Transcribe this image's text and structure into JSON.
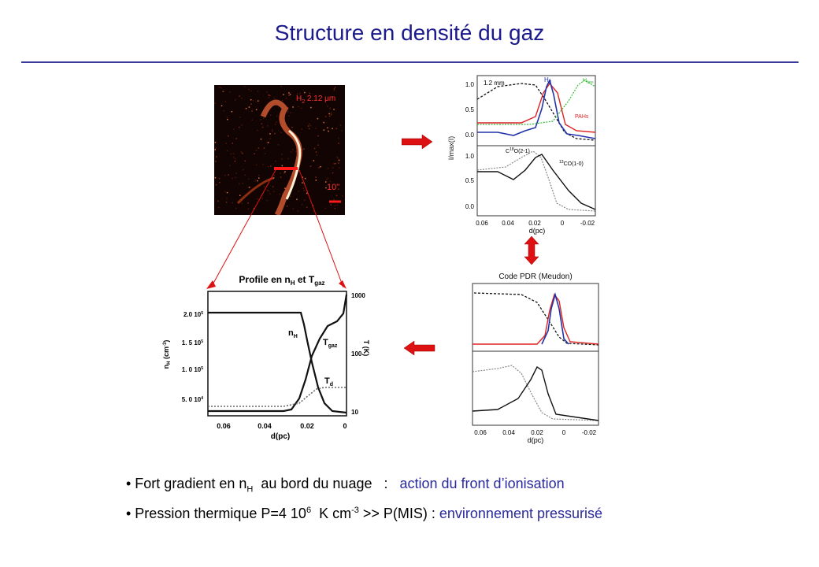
{
  "title": "Structure en densité du gaz",
  "image_panel": {
    "label_main": "H",
    "label_sub": "2",
    "label_rest": " 2.12 μm",
    "scale_label": "10\""
  },
  "top_right_plot": {
    "y_axis_label": "I/max(I)",
    "x_axis_label": "d(pc)",
    "upper_y_ticks": [
      "1.0",
      "0.5",
      "0.0"
    ],
    "lower_y_ticks": [
      "1.0",
      "0.5",
      "0.0"
    ],
    "x_ticks": [
      "0.06",
      "0.04",
      "0.02",
      "0",
      "-0.02"
    ],
    "label_1_2mm": "1.2 mm",
    "label_h2": "H",
    "label_h2_sub": "2",
    "label_hfarm": "H",
    "label_hfarm_sub": "fare",
    "label_pahs": "PAHs",
    "label_c18o": "C",
    "label_c18o_sup": "18",
    "label_c18o_rest": "O(2-1)",
    "label_13co": "",
    "label_13co_sup": "13",
    "label_13co_rest": "CO(1-0)"
  },
  "pdr_plot": {
    "caption": "Code PDR (Meudon)",
    "x_ticks": [
      "0.06",
      "0.04",
      "0.02",
      "0",
      "-0.02"
    ],
    "x_axis_label": "d(pc)"
  },
  "profile_plot": {
    "title_main": "Profile en n",
    "title_sub1": "H",
    "title_mid": " et T",
    "title_sub2": "gaz",
    "left_ticks": [
      "2.0 10",
      "1. 5 10",
      "1. 0 10",
      "5. 0 10"
    ],
    "left_tick_exps": [
      "5",
      "5",
      "5",
      "4"
    ],
    "left_axis_label": "n",
    "left_axis_sub": "H",
    "left_axis_unit": " (cm",
    "left_axis_sup": "-3",
    "left_axis_close": ")",
    "right_ticks": [
      "1000",
      "100",
      "10"
    ],
    "right_axis_label": "T (K)",
    "x_ticks": [
      "0.06",
      "0.04",
      "0.02",
      "0"
    ],
    "x_axis_label": "d(pc)",
    "curve_label_nh": "n",
    "curve_label_nh_sub": "H",
    "curve_label_tgaz": "T",
    "curve_label_tgaz_sub": "gaz",
    "curve_label_td": "T",
    "curve_label_td_sub": "d"
  },
  "bullets": {
    "b1_prefix": "• Fort gradient en n",
    "b1_sub": "H",
    "b1_mid": "  au bord du nuage   :   ",
    "b1_accent": "action du front d’ionisation",
    "b2_prefix": "• Pression thermique P=4 10",
    "b2_sup1": "6",
    "b2_mid": "  K cm",
    "b2_sup2": "-3",
    "b2_mid2": " >> P(MIS) : ",
    "b2_accent": "environnement pressurisé"
  },
  "colors": {
    "title": "#1a1a8c",
    "arrow": "#dd1111",
    "red_curve": "#dd2222",
    "blue_curve": "#2233aa",
    "green_curve": "#33bb33"
  }
}
